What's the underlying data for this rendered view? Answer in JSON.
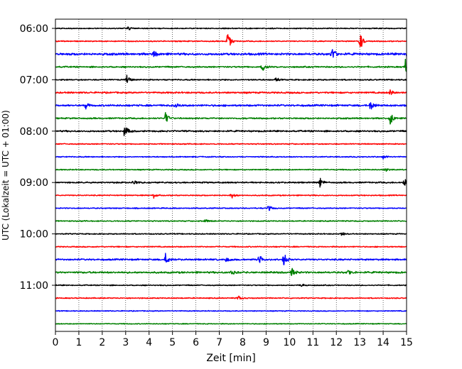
{
  "chart_data": {
    "type": "line",
    "subtype": "helicorder",
    "title": "",
    "xlabel": "Zeit  [min]",
    "ylabel": "UTC (Lokalzeit = UTC + 01:00)",
    "xlim": [
      0,
      15
    ],
    "x_ticks": [
      0,
      1,
      2,
      3,
      4,
      5,
      6,
      7,
      8,
      9,
      10,
      11,
      12,
      13,
      14,
      15
    ],
    "x_grid": "dotted",
    "y_ticks": [
      "06:00",
      "07:00",
      "08:00",
      "09:00",
      "10:00",
      "11:00"
    ],
    "line_interval_minutes": 15,
    "colors": [
      "#000000",
      "#ff0000",
      "#0000ff",
      "#008000"
    ],
    "traces": [
      {
        "start": "06:00",
        "color": "#000000",
        "noise": 0.6,
        "events": [
          [
            3.1,
            1.0
          ]
        ]
      },
      {
        "start": "06:15",
        "color": "#ff0000",
        "noise": 0.6,
        "events": [
          [
            7.35,
            4.5
          ],
          [
            13.0,
            4.5
          ]
        ]
      },
      {
        "start": "06:30",
        "color": "#0000ff",
        "noise": 1.2,
        "events": [
          [
            4.2,
            1.5
          ],
          [
            11.8,
            4.0
          ],
          [
            15.0,
            2.0
          ]
        ]
      },
      {
        "start": "06:45",
        "color": "#008000",
        "noise": 0.8,
        "events": [
          [
            8.8,
            3.0
          ],
          [
            14.95,
            4.0
          ]
        ]
      },
      {
        "start": "07:00",
        "color": "#000000",
        "noise": 0.7,
        "events": [
          [
            3.05,
            2.2
          ],
          [
            9.4,
            1.2
          ]
        ]
      },
      {
        "start": "07:15",
        "color": "#ff0000",
        "noise": 0.9,
        "events": [
          [
            14.3,
            1.5
          ]
        ]
      },
      {
        "start": "07:30",
        "color": "#0000ff",
        "noise": 1.0,
        "events": [
          [
            1.3,
            1.5
          ],
          [
            5.1,
            1.5
          ],
          [
            13.45,
            3.0
          ]
        ]
      },
      {
        "start": "07:45",
        "color": "#008000",
        "noise": 0.8,
        "events": [
          [
            4.7,
            3.5
          ],
          [
            14.3,
            3.5
          ]
        ]
      },
      {
        "start": "08:00",
        "color": "#000000",
        "noise": 0.9,
        "events": [
          [
            2.95,
            3.5
          ]
        ]
      },
      {
        "start": "08:15",
        "color": "#ff0000",
        "noise": 0.6,
        "events": []
      },
      {
        "start": "08:30",
        "color": "#0000ff",
        "noise": 0.6,
        "events": [
          [
            14.0,
            1.0
          ]
        ]
      },
      {
        "start": "08:45",
        "color": "#008000",
        "noise": 0.6,
        "events": [
          [
            14.1,
            1.0
          ]
        ]
      },
      {
        "start": "09:00",
        "color": "#000000",
        "noise": 0.8,
        "events": [
          [
            3.3,
            1.5
          ],
          [
            11.3,
            2.0
          ],
          [
            14.9,
            2.0
          ]
        ]
      },
      {
        "start": "09:15",
        "color": "#ff0000",
        "noise": 0.6,
        "events": [
          [
            4.2,
            1.2
          ],
          [
            7.5,
            1.5
          ]
        ]
      },
      {
        "start": "09:30",
        "color": "#0000ff",
        "noise": 0.6,
        "events": [
          [
            9.1,
            1.5
          ]
        ]
      },
      {
        "start": "09:45",
        "color": "#008000",
        "noise": 0.6,
        "events": [
          [
            6.4,
            0.8
          ]
        ]
      },
      {
        "start": "10:00",
        "color": "#000000",
        "noise": 0.6,
        "events": [
          [
            12.2,
            1.0
          ]
        ]
      },
      {
        "start": "10:15",
        "color": "#ff0000",
        "noise": 0.6,
        "events": []
      },
      {
        "start": "10:30",
        "color": "#0000ff",
        "noise": 0.9,
        "events": [
          [
            4.7,
            3.0
          ],
          [
            7.3,
            1.5
          ],
          [
            8.7,
            2.5
          ],
          [
            9.75,
            4.0
          ]
        ]
      },
      {
        "start": "10:45",
        "color": "#008000",
        "noise": 1.0,
        "events": [
          [
            7.5,
            1.8
          ],
          [
            10.1,
            3.0
          ],
          [
            12.5,
            1.2
          ]
        ]
      },
      {
        "start": "11:00",
        "color": "#000000",
        "noise": 0.6,
        "events": [
          [
            10.5,
            1.0
          ]
        ]
      },
      {
        "start": "11:15",
        "color": "#ff0000",
        "noise": 0.6,
        "events": [
          [
            7.8,
            1.2
          ]
        ]
      },
      {
        "start": "11:30",
        "color": "#0000ff",
        "noise": 0.5,
        "events": []
      },
      {
        "start": "11:45",
        "color": "#008000",
        "noise": 0.5,
        "events": []
      }
    ]
  }
}
